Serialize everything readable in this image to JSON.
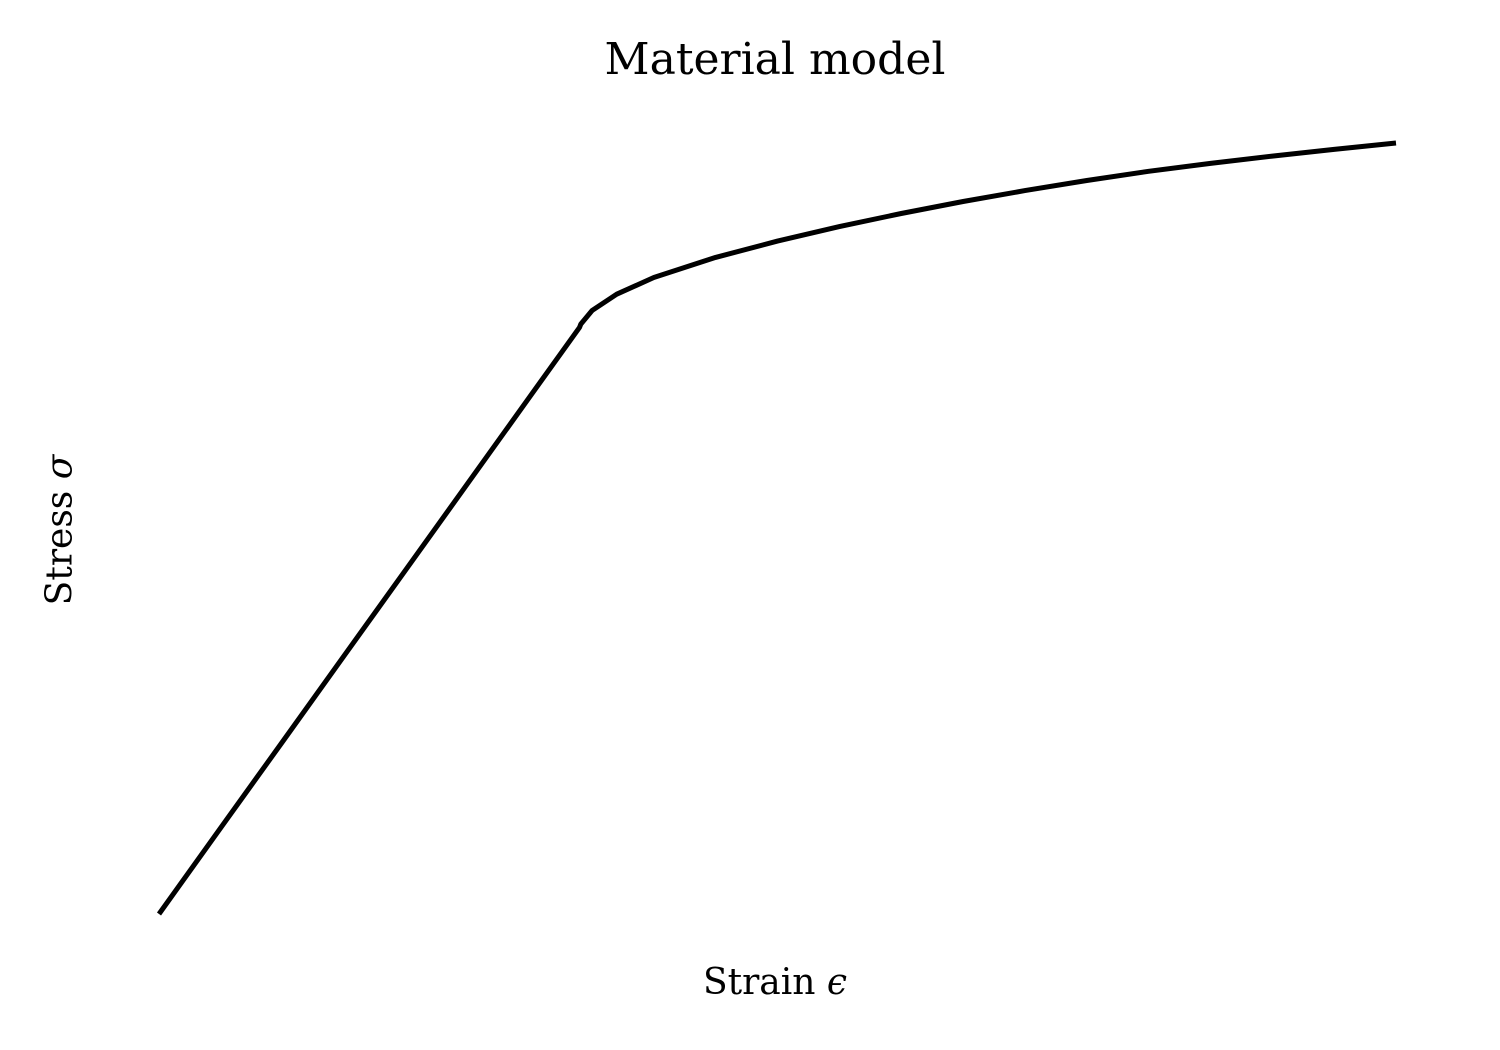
{
  "chart_data": {
    "type": "line",
    "title": "Material model",
    "xlabel": "Strain",
    "xlabel_symbol": "ϵ",
    "ylabel": "Stress",
    "ylabel_symbol": "σ",
    "grid": false,
    "axes_visible": false,
    "series": [
      {
        "color": "#000000",
        "x": [
          0.0,
          0.05,
          0.1,
          0.15,
          0.2,
          0.25,
          0.3,
          0.34,
          0.341,
          0.35,
          0.37,
          0.4,
          0.45,
          0.5,
          0.55,
          0.6,
          0.65,
          0.7,
          0.75,
          0.8,
          0.85,
          0.9,
          0.95,
          1.0
        ],
        "y": [
          0.0,
          0.1148,
          0.2296,
          0.3444,
          0.4593,
          0.5741,
          0.6889,
          0.7807,
          0.785,
          0.803,
          0.8248,
          0.847,
          0.8737,
          0.8955,
          0.9148,
          0.9322,
          0.9481,
          0.9627,
          0.9761,
          0.9883,
          0.9989,
          1.0086,
          1.0175,
          1.026
        ]
      }
    ]
  }
}
